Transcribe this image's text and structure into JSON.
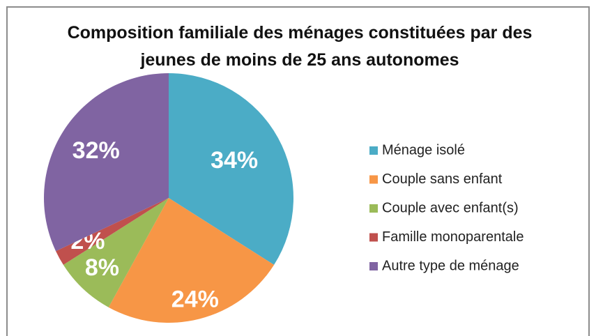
{
  "chart_data": {
    "type": "pie",
    "title": "Composition familiale des ménages constituées par des jeunes de moins de 25 ans autonomes",
    "categories": [
      "Ménage isolé",
      "Couple sans enfant",
      "Couple avec enfant(s)",
      "Famille monoparentale",
      "Autre type de ménage"
    ],
    "values": [
      34,
      24,
      8,
      2,
      32
    ],
    "value_labels": [
      "34%",
      "24%",
      "8%",
      "2%",
      "32%"
    ],
    "colors": [
      "#4bacc6",
      "#f79646",
      "#9bbb59",
      "#c0504d",
      "#8064a2"
    ],
    "legend": "right"
  }
}
